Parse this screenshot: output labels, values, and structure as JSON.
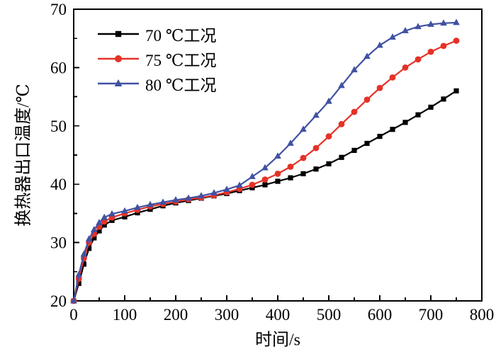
{
  "chart_data": {
    "type": "line",
    "title": "",
    "xlabel": "时间/s",
    "ylabel": "换热器出口温度/℃",
    "xlim": [
      0,
      800
    ],
    "ylim": [
      20,
      70
    ],
    "x_ticks": [
      0,
      100,
      200,
      300,
      400,
      500,
      600,
      700,
      800
    ],
    "y_ticks": [
      20,
      30,
      40,
      50,
      60,
      70
    ],
    "x_minor_ticks": [
      50,
      150,
      250,
      350,
      450,
      550,
      650,
      750
    ],
    "y_minor_ticks": [
      25,
      35,
      45,
      55,
      65
    ],
    "grid": false,
    "legend_position": "top-left",
    "x": [
      0,
      10,
      20,
      30,
      40,
      50,
      60,
      75,
      100,
      125,
      150,
      175,
      200,
      225,
      250,
      275,
      300,
      325,
      350,
      375,
      400,
      425,
      450,
      475,
      500,
      525,
      550,
      575,
      600,
      625,
      650,
      675,
      700,
      725,
      750
    ],
    "series": [
      {
        "name": "70 ℃工况",
        "marker": "square",
        "color": "#000000",
        "values": [
          20,
          23,
          26.3,
          29,
          30.8,
          32,
          33,
          33.8,
          34.4,
          35.1,
          35.7,
          36.3,
          36.8,
          37.2,
          37.6,
          38,
          38.4,
          38.9,
          39.4,
          39.9,
          40.5,
          41.1,
          41.8,
          42.6,
          43.5,
          44.6,
          45.8,
          47,
          48.2,
          49.4,
          50.6,
          51.9,
          53.2,
          54.6,
          56
        ]
      },
      {
        "name": "75 ℃工况",
        "marker": "circle",
        "color": "#e53228",
        "values": [
          20,
          23.8,
          27.3,
          30,
          31.5,
          32.7,
          33.6,
          34.3,
          35,
          35.6,
          36.2,
          36.6,
          37,
          37.4,
          37.7,
          38.1,
          38.6,
          39.2,
          39.9,
          40.8,
          41.8,
          43,
          44.5,
          46.2,
          48.2,
          50.3,
          52.4,
          54.5,
          56.5,
          58.3,
          60,
          61.4,
          62.7,
          63.7,
          64.6
        ]
      },
      {
        "name": "80 ℃工况",
        "marker": "triangle",
        "color": "#4151a2",
        "values": [
          20,
          24.5,
          28,
          30.6,
          32.2,
          33.4,
          34.3,
          34.9,
          35.4,
          36,
          36.5,
          36.9,
          37.3,
          37.6,
          38,
          38.5,
          39.1,
          39.8,
          41.3,
          42.8,
          44.8,
          47,
          49.4,
          51.8,
          54.2,
          56.9,
          59.6,
          61.9,
          63.8,
          65.2,
          66.3,
          67,
          67.4,
          67.6,
          67.7
        ]
      }
    ]
  }
}
